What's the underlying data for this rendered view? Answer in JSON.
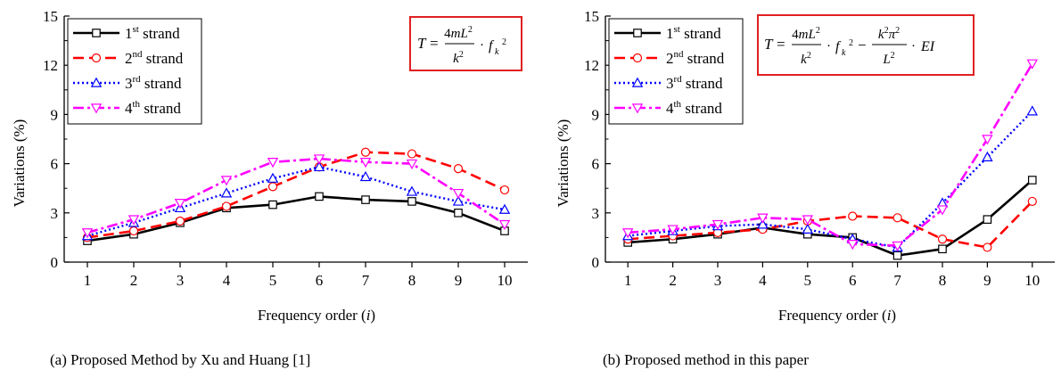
{
  "chart_data": [
    {
      "type": "line",
      "caption": "(a) Proposed Method by Xu and Huang [1]",
      "xlabel_main": "Frequency order (",
      "xlabel_var": "i",
      "xlabel_close": ")",
      "ylabel": "Variations (%)",
      "x": [
        1,
        2,
        3,
        4,
        5,
        6,
        7,
        8,
        9,
        10
      ],
      "xlim": [
        0.5,
        10.5
      ],
      "ylim": [
        0,
        15
      ],
      "yticks": [
        0,
        3,
        6,
        9,
        12,
        15
      ],
      "legend_position": "top-left",
      "formula_position": "top-right",
      "formula_color": "#e02020",
      "series": [
        {
          "name_num": "1",
          "name_sup": "st",
          "name_rest": " strand",
          "color": "#000000",
          "dash": "solid",
          "marker": "square",
          "values": [
            1.3,
            1.7,
            2.4,
            3.3,
            3.5,
            4.0,
            3.8,
            3.7,
            3.0,
            1.9
          ]
        },
        {
          "name_num": "2",
          "name_sup": "nd",
          "name_rest": " strand",
          "color": "#ff0000",
          "dash": "dash",
          "marker": "circle",
          "values": [
            1.5,
            1.9,
            2.5,
            3.4,
            4.6,
            5.8,
            6.7,
            6.6,
            5.7,
            4.4
          ]
        },
        {
          "name_num": "3",
          "name_sup": "rd",
          "name_rest": " strand",
          "color": "#0000ff",
          "dash": "dot",
          "marker": "triangle-up",
          "values": [
            1.6,
            2.4,
            3.3,
            4.2,
            5.1,
            5.8,
            5.2,
            4.3,
            3.7,
            3.2
          ]
        },
        {
          "name_num": "4",
          "name_sup": "th",
          "name_rest": " strand",
          "color": "#ff00ff",
          "dash": "dashdot",
          "marker": "triangle-down",
          "values": [
            1.8,
            2.6,
            3.6,
            5.0,
            6.1,
            6.3,
            6.1,
            6.0,
            4.2,
            2.3
          ]
        }
      ]
    },
    {
      "type": "line",
      "caption": "(b) Proposed method in this paper",
      "xlabel_main": "Frequency order (",
      "xlabel_var": "i",
      "xlabel_close": ")",
      "ylabel": "Variations (%)",
      "x": [
        1,
        2,
        3,
        4,
        5,
        6,
        7,
        8,
        9,
        10
      ],
      "xlim": [
        0.5,
        10.5
      ],
      "ylim": [
        0,
        15
      ],
      "yticks": [
        0,
        3,
        6,
        9,
        12,
        15
      ],
      "legend_position": "top-left",
      "formula_position": "top-center",
      "formula_color": "#e02020",
      "series": [
        {
          "name_num": "1",
          "name_sup": "st",
          "name_rest": " strand",
          "color": "#000000",
          "dash": "solid",
          "marker": "square",
          "values": [
            1.2,
            1.4,
            1.7,
            2.1,
            1.7,
            1.5,
            0.4,
            0.8,
            2.6,
            5.0
          ]
        },
        {
          "name_num": "2",
          "name_sup": "nd",
          "name_rest": " strand",
          "color": "#ff0000",
          "dash": "dash",
          "marker": "circle",
          "values": [
            1.4,
            1.6,
            1.8,
            2.0,
            2.5,
            2.8,
            2.7,
            1.4,
            0.9,
            3.7
          ]
        },
        {
          "name_num": "3",
          "name_sup": "rd",
          "name_rest": " strand",
          "color": "#0000ff",
          "dash": "dot",
          "marker": "triangle-up",
          "values": [
            1.6,
            1.9,
            2.2,
            2.3,
            2.0,
            1.4,
            0.9,
            3.6,
            6.4,
            9.2
          ]
        },
        {
          "name_num": "4",
          "name_sup": "th",
          "name_rest": " strand",
          "color": "#ff00ff",
          "dash": "dashdot",
          "marker": "triangle-down",
          "values": [
            1.8,
            2.0,
            2.3,
            2.7,
            2.6,
            1.1,
            1.0,
            3.2,
            7.5,
            12.1
          ]
        }
      ]
    }
  ]
}
